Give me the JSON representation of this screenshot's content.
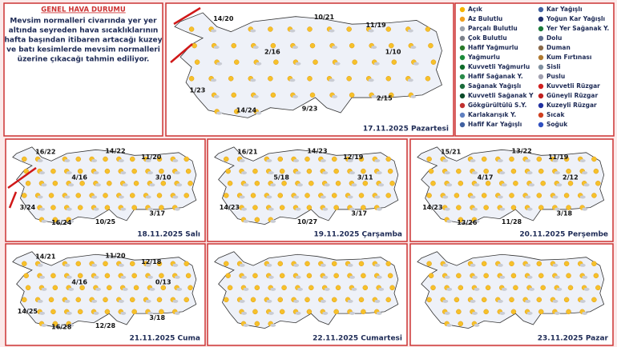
{
  "summary": {
    "title": "GENEL HAVA DURUMU",
    "lines": [
      "Mevsim normalleri civarında yer yer",
      "altında seyreden hava sıcaklıklarının",
      "hafta başından itibaren artacağı kuzey",
      "ve batı kesimlerde mevsim normalleri",
      "üzerine çıkacağı tahmin ediliyor."
    ]
  },
  "legend": {
    "left": [
      "Açık",
      "Az Bulutlu",
      "Parçalı Bulutlu",
      "Çok Bulutlu",
      "Hafif Yağmurlu",
      "Yağmurlu",
      "Kuvvetli Yağmurlu",
      "Hafif Sağanak Y.",
      "Sağanak Yağışlı",
      "Kuvvetli Sağanak Y",
      "Gökgürültülü S.Y.",
      "Karlakarışık Y.",
      "Hafif Kar Yağışlı"
    ],
    "right": [
      "Kar Yağışlı",
      "Yoğun Kar Yağışlı",
      "Yer Yer Sağanak Y.",
      "Dolu",
      "Duman",
      "Kum Fırtınası",
      "Sisli",
      "Puslu",
      "Kuvvetli Rüzgar",
      "Güneyli Rüzgar",
      "Kuzeyli Rüzgar",
      "Sıcak",
      "Soğuk"
    ]
  },
  "maps": [
    {
      "date": "17.11.2025 Pazartesi",
      "temps": [
        "14/20",
        "10/21",
        "11/19",
        "2/16",
        "1/10",
        "1/23",
        "14/24",
        "9/23",
        "2/15"
      ]
    },
    {
      "date": "18.11.2025 Salı",
      "temps": [
        "16/22",
        "14/22",
        "11/20",
        "4/16",
        "3/10",
        "3/24",
        "16/24",
        "10/25",
        "3/17"
      ]
    },
    {
      "date": "19.11.2025 Çarşamba",
      "temps": [
        "16/21",
        "14/23",
        "12/19",
        "5/18",
        "3/11",
        "14/23",
        "10/27",
        "3/17"
      ]
    },
    {
      "date": "20.11.2025 Perşembe",
      "temps": [
        "15/21",
        "13/22",
        "11/19",
        "4/17",
        "2/12",
        "14/23",
        "13/26",
        "11/28",
        "3/18"
      ]
    },
    {
      "date": "21.11.2025 Cuma",
      "temps": [
        "14/21",
        "11/20",
        "12/18",
        "4/16",
        "0/13",
        "14/25",
        "16/28",
        "12/28",
        "3/18"
      ]
    },
    {
      "date": "22.11.2025 Cumartesi",
      "temps": []
    },
    {
      "date": "23.11.2025 Pazar",
      "temps": []
    }
  ]
}
